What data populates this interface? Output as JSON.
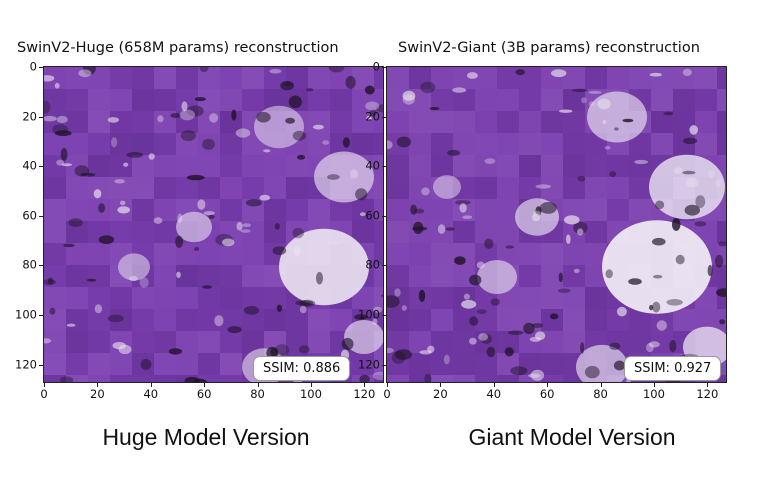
{
  "chart_data": [
    {
      "type": "heatmap",
      "title": "SwinV2-Huge (658M params) reconstruction",
      "x_ticks": [
        "0",
        "20",
        "40",
        "60",
        "80",
        "100",
        "120"
      ],
      "y_ticks": [
        "0",
        "20",
        "40",
        "60",
        "80",
        "100",
        "120"
      ],
      "xlim": [
        0,
        127
      ],
      "ylim": [
        127,
        0
      ],
      "annotation": "SSIM: 0.886",
      "ssim": 0.886,
      "colors": {
        "base": "#7b3fb0",
        "dark": "#4a1f75",
        "light": "#f2eef6",
        "shadow": "#1c1124"
      },
      "caption": "Huge Model Version"
    },
    {
      "type": "heatmap",
      "title": "SwinV2-Giant (3B params) reconstruction",
      "x_ticks": [
        "0",
        "20",
        "40",
        "60",
        "80",
        "100",
        "120"
      ],
      "y_ticks": [
        "0",
        "20",
        "40",
        "60",
        "80",
        "100",
        "120"
      ],
      "xlim": [
        0,
        127
      ],
      "ylim": [
        127,
        0
      ],
      "annotation": "SSIM: 0.927",
      "ssim": 0.927,
      "colors": {
        "base": "#7a3eae",
        "dark": "#4a1f75",
        "light": "#f4f1f7",
        "shadow": "#1c1124"
      },
      "caption": "Giant Model Version"
    }
  ]
}
